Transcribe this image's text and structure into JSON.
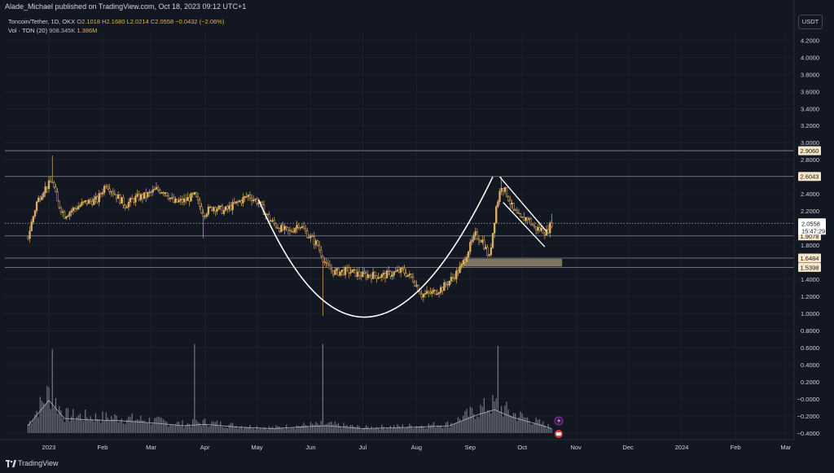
{
  "header": {
    "published": "Alade_Michael published on TradingView.com, Oct 18, 2023 09:12 UTC+1",
    "symbol": "Toncoin/Tether, 1D, OKX",
    "o_label": "O",
    "o_value": "2.1018",
    "h_label": "H",
    "h_value": "2.1680",
    "l_label": "L",
    "l_value": "2.0214",
    "c_label": "C",
    "c_value": "2.0558",
    "change": "−0.0432 (−2.06%)",
    "vol_label": "Vol · TON (20)",
    "vol_ma": "908.345K",
    "vol_value": "1.386M"
  },
  "currency": "USDT",
  "footer": {
    "brand": "TradingView"
  },
  "colors": {
    "background": "#131722",
    "candle": "#e0b15e",
    "volume": "#9598a1",
    "line": "#ffffff",
    "box": "#8c7f6a"
  },
  "chart_data": {
    "type": "candlestick",
    "symbol": "Toncoin/Tether",
    "interval": "1D",
    "exchange": "OKX",
    "price_axis": {
      "ticks": [
        "4.2000",
        "4.0000",
        "3.8000",
        "3.6000",
        "3.4000",
        "3.2000",
        "3.0000",
        "2.8000",
        "2.4000",
        "2.2000",
        "1.8000",
        "1.4000",
        "1.2000",
        "1.0000",
        "0.8000",
        "0.6000",
        "0.4000",
        "0.2000",
        "−0.0000",
        "−0.2000",
        "−0.4000"
      ],
      "tick_values": [
        4.2,
        4.0,
        3.8,
        3.6,
        3.4,
        3.2,
        3.0,
        2.8,
        2.4,
        2.2,
        1.8,
        1.4,
        1.2,
        1.0,
        0.8,
        0.6,
        0.4,
        0.2,
        0.0,
        -0.2,
        -0.4
      ],
      "range": [
        -0.45,
        4.3
      ]
    },
    "time_axis": {
      "labels": [
        "2023",
        "Feb",
        "Mar",
        "Apr",
        "May",
        "Jun",
        "Jul",
        "Aug",
        "Sep",
        "Oct",
        "Nov",
        "Dec",
        "2024",
        "Feb",
        "Mar"
      ],
      "dates": [
        "2023-01-01",
        "2023-02-01",
        "2023-03-01",
        "2023-04-01",
        "2023-05-01",
        "2023-06-01",
        "2023-07-01",
        "2023-08-01",
        "2023-09-01",
        "2023-10-01",
        "2023-11-01",
        "2023-12-01",
        "2024-01-01",
        "2024-02-01",
        "2024-03-01"
      ]
    },
    "horizontal_levels": [
      {
        "value": 2.906,
        "label": "2.9060"
      },
      {
        "value": 2.6043,
        "label": "2.6043"
      },
      {
        "value": 1.9078,
        "label": "1.9078"
      },
      {
        "value": 1.6484,
        "label": "1.6484"
      },
      {
        "value": 1.5398,
        "label": "1.5398"
      }
    ],
    "last_price": {
      "value": 2.0558,
      "label": "2.0558",
      "countdown": "15:47:29"
    },
    "price_path": [
      [
        "2022-12-20",
        1.9
      ],
      [
        "2022-12-25",
        2.3
      ],
      [
        "2022-12-29",
        2.45
      ],
      [
        "2023-01-03",
        2.55
      ],
      [
        "2023-01-06",
        2.3
      ],
      [
        "2023-01-10",
        2.15
      ],
      [
        "2023-01-15",
        2.22
      ],
      [
        "2023-01-22",
        2.3
      ],
      [
        "2023-01-29",
        2.33
      ],
      [
        "2023-02-03",
        2.52
      ],
      [
        "2023-02-08",
        2.4
      ],
      [
        "2023-02-14",
        2.27
      ],
      [
        "2023-02-20",
        2.35
      ],
      [
        "2023-02-26",
        2.38
      ],
      [
        "2023-03-04",
        2.45
      ],
      [
        "2023-03-09",
        2.43
      ],
      [
        "2023-03-14",
        2.3
      ],
      [
        "2023-03-20",
        2.32
      ],
      [
        "2023-03-26",
        2.38
      ],
      [
        "2023-03-31",
        2.17
      ],
      [
        "2023-04-06",
        2.25
      ],
      [
        "2023-04-12",
        2.2
      ],
      [
        "2023-04-20",
        2.3
      ],
      [
        "2023-04-26",
        2.38
      ],
      [
        "2023-05-02",
        2.3
      ],
      [
        "2023-05-08",
        2.1
      ],
      [
        "2023-05-14",
        2.0
      ],
      [
        "2023-05-20",
        1.95
      ],
      [
        "2023-05-25",
        2.05
      ],
      [
        "2023-05-30",
        1.93
      ],
      [
        "2023-06-05",
        1.8
      ],
      [
        "2023-06-10",
        1.55
      ],
      [
        "2023-06-15",
        1.48
      ],
      [
        "2023-06-22",
        1.5
      ],
      [
        "2023-06-30",
        1.45
      ],
      [
        "2023-07-06",
        1.45
      ],
      [
        "2023-07-12",
        1.44
      ],
      [
        "2023-07-18",
        1.47
      ],
      [
        "2023-07-24",
        1.5
      ],
      [
        "2023-07-30",
        1.4
      ],
      [
        "2023-08-04",
        1.22
      ],
      [
        "2023-08-10",
        1.24
      ],
      [
        "2023-08-16",
        1.3
      ],
      [
        "2023-08-22",
        1.42
      ],
      [
        "2023-08-27",
        1.55
      ],
      [
        "2023-08-31",
        1.75
      ],
      [
        "2023-09-04",
        1.92
      ],
      [
        "2023-09-08",
        1.85
      ],
      [
        "2023-09-12",
        1.65
      ],
      [
        "2023-09-16",
        2.25
      ],
      [
        "2023-09-19",
        2.5
      ],
      [
        "2023-09-22",
        2.4
      ],
      [
        "2023-09-26",
        2.2
      ],
      [
        "2023-09-30",
        2.1
      ],
      [
        "2023-10-04",
        2.12
      ],
      [
        "2023-10-08",
        2.0
      ],
      [
        "2023-10-12",
        1.98
      ],
      [
        "2023-10-15",
        1.95
      ],
      [
        "2023-10-18",
        2.06
      ]
    ],
    "volume_path": [
      [
        "2022-12-20",
        0.1
      ],
      [
        "2023-01-01",
        0.45
      ],
      [
        "2023-01-10",
        0.2
      ],
      [
        "2023-01-25",
        0.18
      ],
      [
        "2023-02-10",
        0.17
      ],
      [
        "2023-03-01",
        0.14
      ],
      [
        "2023-03-20",
        0.1
      ],
      [
        "2023-04-01",
        0.12
      ],
      [
        "2023-04-20",
        0.08
      ],
      [
        "2023-05-10",
        0.06
      ],
      [
        "2023-06-01",
        0.09
      ],
      [
        "2023-06-10",
        0.1
      ],
      [
        "2023-07-01",
        0.06
      ],
      [
        "2023-08-01",
        0.08
      ],
      [
        "2023-08-20",
        0.1
      ],
      [
        "2023-09-05",
        0.25
      ],
      [
        "2023-09-15",
        0.32
      ],
      [
        "2023-09-25",
        0.22
      ],
      [
        "2023-10-10",
        0.12
      ],
      [
        "2023-10-18",
        0.06
      ]
    ],
    "volume_baseline": -0.4,
    "volume_spikes": [
      [
        "2023-01-03",
        0.98
      ],
      [
        "2023-03-26",
        1.04
      ],
      [
        "2023-06-08",
        1.04
      ],
      [
        "2023-09-17",
        1.02
      ]
    ],
    "drawings": {
      "cup_curve": [
        [
          "2023-05-02",
          2.33
        ],
        [
          "2023-07-05",
          0.96
        ],
        [
          "2023-09-14",
          2.6
        ]
      ],
      "channel_upper": [
        [
          "2023-09-18",
          2.6
        ],
        [
          "2023-10-15",
          1.96
        ]
      ],
      "channel_lower": [
        [
          "2023-09-20",
          2.3
        ],
        [
          "2023-10-14",
          1.78
        ]
      ],
      "demand_zone": {
        "x": [
          "2023-08-28",
          "2023-10-24"
        ],
        "y": [
          1.55,
          1.64
        ]
      }
    }
  }
}
